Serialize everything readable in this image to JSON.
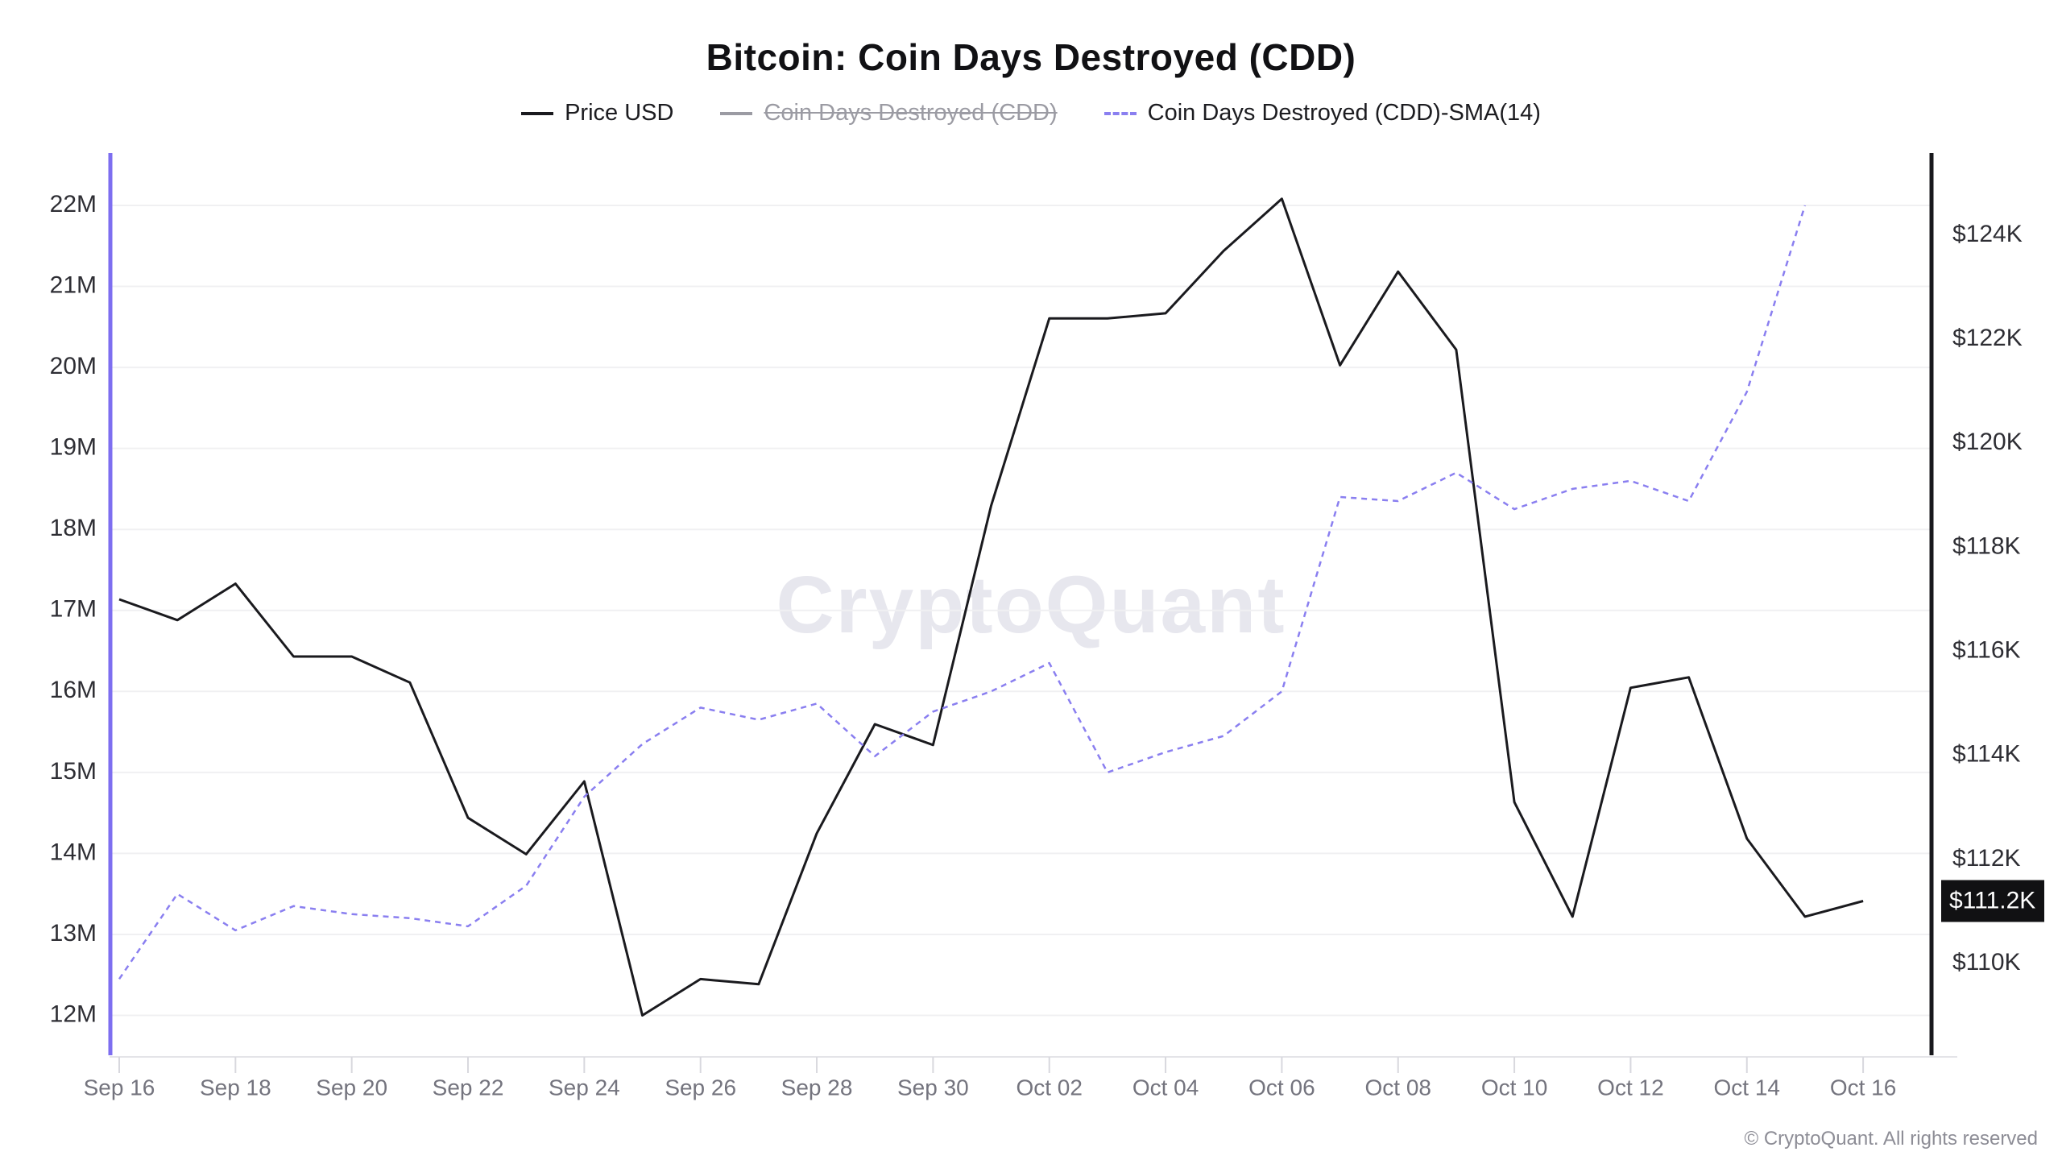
{
  "header": {
    "title": "Bitcoin: Coin Days Destroyed (CDD)",
    "watermark": "CryptoQuant",
    "copyright": "© CryptoQuant. All rights reserved"
  },
  "legend": {
    "items": [
      {
        "label": "Price USD",
        "color": "#1a1a1e",
        "style": "solid",
        "disabled": false
      },
      {
        "label": "Coin Days Destroyed (CDD)",
        "color": "#9b9ba3",
        "style": "solid",
        "disabled": true
      },
      {
        "label": "Coin Days Destroyed (CDD)-SMA(14)",
        "color": "#8a7ff0",
        "style": "dashed",
        "disabled": false
      }
    ]
  },
  "axes": {
    "left": {
      "color": "#7d6ef0",
      "ticks": [
        {
          "value": 22,
          "label": "22M"
        },
        {
          "value": 21,
          "label": "21M"
        },
        {
          "value": 20,
          "label": "20M"
        },
        {
          "value": 19,
          "label": "19M"
        },
        {
          "value": 18,
          "label": "18M"
        },
        {
          "value": 17,
          "label": "17M"
        },
        {
          "value": 16,
          "label": "16M"
        },
        {
          "value": 15,
          "label": "15M"
        },
        {
          "value": 14,
          "label": "14M"
        },
        {
          "value": 13,
          "label": "13M"
        },
        {
          "value": 12,
          "label": "12M"
        }
      ]
    },
    "right": {
      "color": "#18181c",
      "ticks": [
        {
          "value": 124,
          "label": "$124K"
        },
        {
          "value": 122,
          "label": "$122K"
        },
        {
          "value": 120,
          "label": "$120K"
        },
        {
          "value": 118,
          "label": "$118K"
        },
        {
          "value": 116,
          "label": "$116K"
        },
        {
          "value": 114,
          "label": "$114K"
        },
        {
          "value": 112,
          "label": "$112K"
        },
        {
          "value": 110,
          "label": "$110K"
        }
      ],
      "badge": {
        "label": "$111.2K",
        "value": 111.2,
        "bg": "#111113",
        "fg": "#ffffff"
      }
    },
    "x": {
      "ticks": [
        {
          "index": 0,
          "label": "Sep 16"
        },
        {
          "index": 2,
          "label": "Sep 18"
        },
        {
          "index": 4,
          "label": "Sep 20"
        },
        {
          "index": 6,
          "label": "Sep 22"
        },
        {
          "index": 8,
          "label": "Sep 24"
        },
        {
          "index": 10,
          "label": "Sep 26"
        },
        {
          "index": 12,
          "label": "Sep 28"
        },
        {
          "index": 14,
          "label": "Sep 30"
        },
        {
          "index": 16,
          "label": "Oct 02"
        },
        {
          "index": 18,
          "label": "Oct 04"
        },
        {
          "index": 20,
          "label": "Oct 06"
        },
        {
          "index": 22,
          "label": "Oct 08"
        },
        {
          "index": 24,
          "label": "Oct 10"
        },
        {
          "index": 26,
          "label": "Oct 12"
        },
        {
          "index": 28,
          "label": "Oct 14"
        },
        {
          "index": 30,
          "label": "Oct 16"
        }
      ]
    }
  },
  "chart_data": {
    "type": "line",
    "title": "Bitcoin: Coin Days Destroyed (CDD)",
    "x": [
      "Sep 16",
      "Sep 17",
      "Sep 18",
      "Sep 19",
      "Sep 20",
      "Sep 21",
      "Sep 22",
      "Sep 23",
      "Sep 24",
      "Sep 25",
      "Sep 26",
      "Sep 27",
      "Sep 28",
      "Sep 29",
      "Sep 30",
      "Oct 01",
      "Oct 02",
      "Oct 03",
      "Oct 04",
      "Oct 05",
      "Oct 06",
      "Oct 07",
      "Oct 08",
      "Oct 09",
      "Oct 10",
      "Oct 11",
      "Oct 12",
      "Oct 13",
      "Oct 14",
      "Oct 15",
      "Oct 16"
    ],
    "y_left": {
      "unit": "M coin-days",
      "range": [
        11.5,
        22.55
      ],
      "gridlines": true
    },
    "y_right": {
      "unit": "USD thousands",
      "range": [
        108.2,
        125.7
      ],
      "gridlines": false
    },
    "legend_position": "top",
    "series": [
      {
        "name": "Price USD",
        "axis": "right",
        "color": "#1a1a1e",
        "style": "solid",
        "values": [
          117.0,
          116.6,
          117.3,
          115.9,
          115.9,
          115.4,
          112.8,
          112.1,
          113.5,
          109.0,
          109.7,
          109.6,
          112.5,
          114.6,
          114.2,
          118.8,
          122.4,
          122.4,
          122.5,
          123.7,
          124.7,
          121.5,
          123.3,
          121.8,
          113.1,
          110.9,
          115.3,
          115.5,
          112.4,
          110.9,
          111.2
        ]
      },
      {
        "name": "Coin Days Destroyed (CDD)",
        "axis": "left",
        "color": "#9b9ba3",
        "style": "solid",
        "disabled": true,
        "values": []
      },
      {
        "name": "Coin Days Destroyed (CDD)-SMA(14)",
        "axis": "left",
        "color": "#8a7ff0",
        "style": "dashed",
        "values": [
          12.45,
          13.5,
          13.05,
          13.35,
          13.25,
          13.2,
          13.1,
          13.6,
          14.7,
          15.35,
          15.8,
          15.65,
          15.85,
          15.2,
          15.75,
          16.0,
          16.35,
          15.0,
          15.25,
          15.45,
          16.0,
          18.4,
          18.35,
          18.7,
          18.25,
          18.5,
          18.6,
          18.35,
          19.7,
          22.0,
          null
        ]
      }
    ]
  }
}
